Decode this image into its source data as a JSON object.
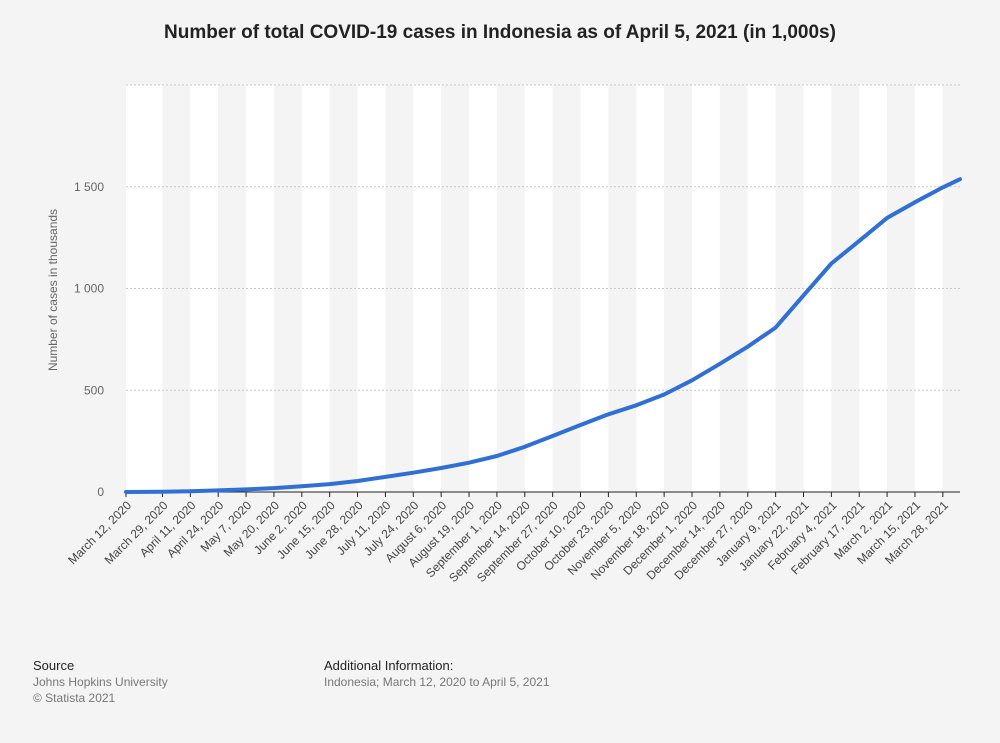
{
  "chart_data": {
    "type": "line",
    "title": "Number of total COVID-19 cases in Indonesia as of April 5, 2021 (in 1,000s)",
    "ylabel": "Number of cases in thousands",
    "xlabel": "",
    "ylim": [
      0,
      2000
    ],
    "yticks": [
      0,
      500,
      1000,
      1500
    ],
    "ytick_labels": [
      "0",
      "500",
      "1 000",
      "1 500"
    ],
    "grid": true,
    "x_range": [
      "2020-03-12",
      "2021-04-05"
    ],
    "xtick_labels": [
      {
        "date": "2020-03-12",
        "label": "March 12, 2020"
      },
      {
        "date": "2020-03-29",
        "label": "March 29, 2020"
      },
      {
        "date": "2020-04-11",
        "label": "April 11, 2020"
      },
      {
        "date": "2020-04-24",
        "label": "April 24, 2020"
      },
      {
        "date": "2020-05-07",
        "label": "May 7, 2020"
      },
      {
        "date": "2020-05-20",
        "label": "May 20, 2020"
      },
      {
        "date": "2020-06-02",
        "label": "June 2, 2020"
      },
      {
        "date": "2020-06-15",
        "label": "June 15, 2020"
      },
      {
        "date": "2020-06-28",
        "label": "June 28, 2020"
      },
      {
        "date": "2020-07-11",
        "label": "July 11, 2020"
      },
      {
        "date": "2020-07-24",
        "label": "July 24, 2020"
      },
      {
        "date": "2020-08-06",
        "label": "August 6, 2020"
      },
      {
        "date": "2020-08-19",
        "label": "August 19, 2020"
      },
      {
        "date": "2020-09-01",
        "label": "September 1, 2020"
      },
      {
        "date": "2020-09-14",
        "label": "September 14, 2020"
      },
      {
        "date": "2020-09-27",
        "label": "September 27, 2020"
      },
      {
        "date": "2020-10-10",
        "label": "October 10, 2020"
      },
      {
        "date": "2020-10-23",
        "label": "October 23, 2020"
      },
      {
        "date": "2020-11-05",
        "label": "November 5, 2020"
      },
      {
        "date": "2020-11-18",
        "label": "November 18, 2020"
      },
      {
        "date": "2020-12-01",
        "label": "December 1, 2020"
      },
      {
        "date": "2020-12-14",
        "label": "December 14, 2020"
      },
      {
        "date": "2020-12-27",
        "label": "December 27, 2020"
      },
      {
        "date": "2021-01-09",
        "label": "January 9, 2021"
      },
      {
        "date": "2021-01-22",
        "label": "January 22, 2021"
      },
      {
        "date": "2021-02-04",
        "label": "February 4, 2021"
      },
      {
        "date": "2021-02-17",
        "label": "February 17, 2021"
      },
      {
        "date": "2021-03-02",
        "label": "March 2, 2021"
      },
      {
        "date": "2021-03-15",
        "label": "March 15, 2021"
      },
      {
        "date": "2021-03-28",
        "label": "March 28, 2021"
      }
    ],
    "series": [
      {
        "color": "#2f6fd6",
        "points": [
          [
            "2020-03-12",
            0
          ],
          [
            "2020-03-29",
            1
          ],
          [
            "2020-04-11",
            4
          ],
          [
            "2020-04-24",
            8
          ],
          [
            "2020-05-07",
            13
          ],
          [
            "2020-05-20",
            19
          ],
          [
            "2020-06-02",
            28
          ],
          [
            "2020-06-15",
            39
          ],
          [
            "2020-06-28",
            54
          ],
          [
            "2020-07-11",
            74
          ],
          [
            "2020-07-24",
            95
          ],
          [
            "2020-08-06",
            118
          ],
          [
            "2020-08-19",
            144
          ],
          [
            "2020-09-01",
            177
          ],
          [
            "2020-09-14",
            222
          ],
          [
            "2020-09-27",
            275
          ],
          [
            "2020-10-10",
            329
          ],
          [
            "2020-10-23",
            382
          ],
          [
            "2020-11-05",
            426
          ],
          [
            "2020-11-18",
            479
          ],
          [
            "2020-12-01",
            549
          ],
          [
            "2020-12-14",
            630
          ],
          [
            "2020-12-27",
            714
          ],
          [
            "2021-01-09",
            808
          ],
          [
            "2021-01-22",
            966
          ],
          [
            "2021-02-04",
            1123
          ],
          [
            "2021-02-17",
            1234
          ],
          [
            "2021-03-02",
            1347
          ],
          [
            "2021-03-15",
            1424
          ],
          [
            "2021-03-28",
            1497
          ],
          [
            "2021-04-05",
            1537
          ]
        ]
      }
    ]
  },
  "footer": {
    "source_heading": "Source",
    "source_line1": "Johns Hopkins University",
    "source_line2": "© Statista 2021",
    "info_heading": "Additional Information:",
    "info_text": "Indonesia; March 12, 2020 to April 5, 2021"
  }
}
